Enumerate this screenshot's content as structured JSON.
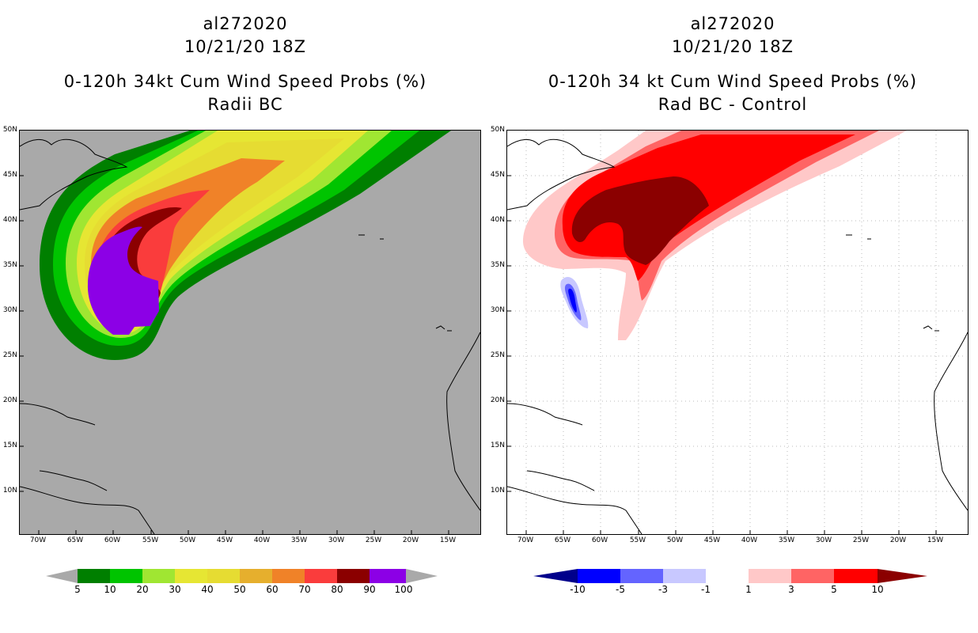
{
  "left_panel": {
    "storm_id": "al272020",
    "datetime": "10/21/20 18Z",
    "title": "0-120h 34kt Cum Wind Speed Probs (%)",
    "subtitle": "Radii BC",
    "colorbar": {
      "labels": [
        "5",
        "10",
        "20",
        "30",
        "40",
        "50",
        "60",
        "70",
        "80",
        "90",
        "100"
      ],
      "colors": [
        "#007f00",
        "#00c400",
        "#00f000",
        "#a0e632",
        "#e6e633",
        "#e6dc32",
        "#e6af2d",
        "#f08228",
        "#fa3c3c",
        "#8b0000",
        "#8c00e6"
      ]
    }
  },
  "right_panel": {
    "storm_id": "al272020",
    "datetime": "10/21/20 18Z",
    "title": "0-120h 34 kt Cum Wind Speed Probs (%)",
    "subtitle": "Rad BC - Control",
    "colorbar": {
      "labels": [
        "-10",
        "-5",
        "-3",
        "-1",
        "1",
        "3",
        "5",
        "10"
      ],
      "colors": [
        "#00008b",
        "#0000ff",
        "#6464ff",
        "#c8c8ff",
        "#ffffff",
        "#ffc8c8",
        "#ff6464",
        "#ff0000",
        "#8b0000"
      ]
    }
  },
  "axes": {
    "lat_labels": [
      "50N",
      "45N",
      "40N",
      "35N",
      "30N",
      "25N",
      "20N",
      "15N",
      "10N"
    ],
    "lon_labels": [
      "70W",
      "65W",
      "60W",
      "55W",
      "50W",
      "45W",
      "40W",
      "35W",
      "30W",
      "25W",
      "20W",
      "15W"
    ]
  }
}
